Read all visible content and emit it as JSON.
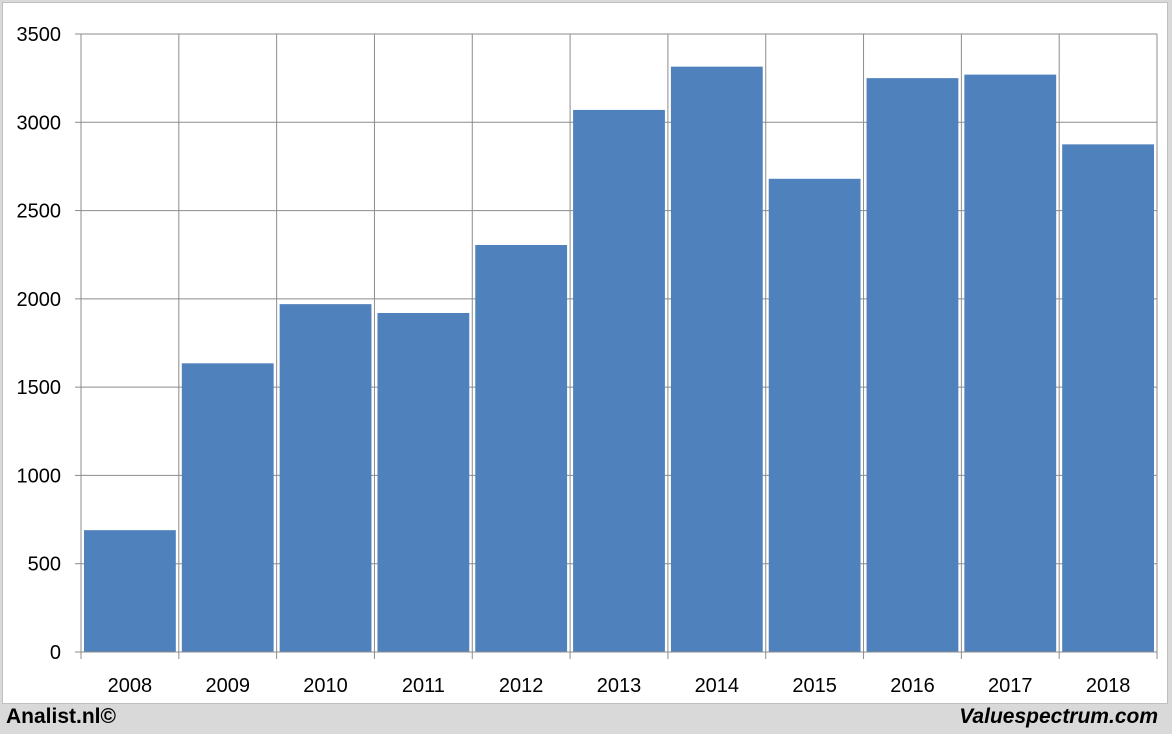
{
  "chart_data": {
    "type": "bar",
    "title": "",
    "xlabel": "",
    "ylabel": "",
    "categories": [
      "2008",
      "2009",
      "2010",
      "2011",
      "2012",
      "2013",
      "2014",
      "2015",
      "2016",
      "2017",
      "2018"
    ],
    "values": [
      690,
      1635,
      1970,
      1920,
      2305,
      3070,
      3315,
      2680,
      3250,
      3270,
      2875
    ],
    "ylim": [
      0,
      3500
    ],
    "yticks": [
      "0",
      "500",
      "1000",
      "1500",
      "2000",
      "2500",
      "3000",
      "3500"
    ],
    "grid": true,
    "legend": "none",
    "bar_color": "#4f81bd"
  },
  "footer": {
    "left": "Analist.nl©",
    "right": "Valuespectrum.com"
  }
}
